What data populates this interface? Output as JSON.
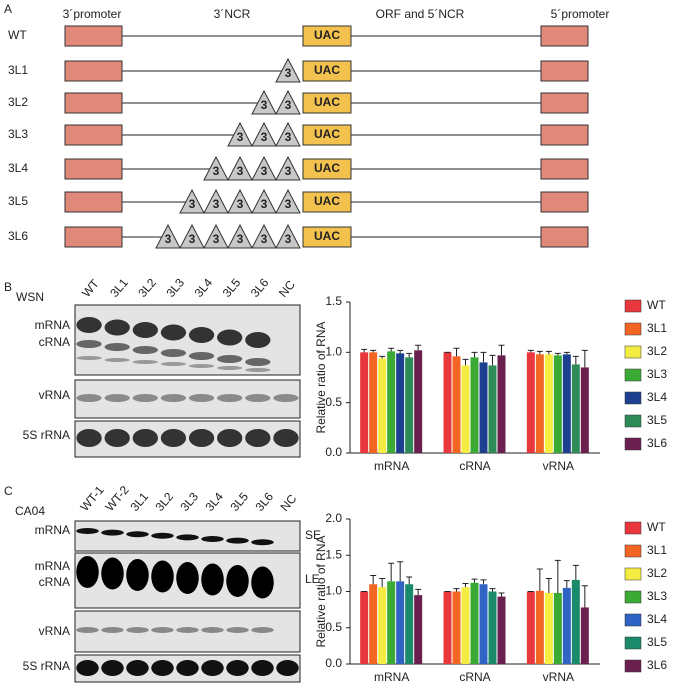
{
  "panels": {
    "a": "A",
    "b": "B",
    "c": "C"
  },
  "diagram": {
    "headers": [
      "3´promoter",
      "3´NCR",
      "ORF and 5´NCR",
      "5´promoter"
    ],
    "rows": [
      {
        "label": "WT",
        "repeats": 0
      },
      {
        "label": "3L1",
        "repeats": 1
      },
      {
        "label": "3L2",
        "repeats": 2
      },
      {
        "label": "3L3",
        "repeats": 3
      },
      {
        "label": "3L4",
        "repeats": 4
      },
      {
        "label": "3L5",
        "repeats": 5
      },
      {
        "label": "3L6",
        "repeats": 6
      }
    ],
    "repeat_label": "3",
    "start_codon": "UAC"
  },
  "blot_b": {
    "strain": "WSN",
    "lanes": [
      "WT",
      "3L1",
      "3L2",
      "3L3",
      "3L4",
      "3L5",
      "3L6",
      "NC"
    ],
    "rows": [
      "mRNA",
      "cRNA",
      "vRNA",
      "5S rRNA"
    ]
  },
  "blot_c": {
    "strain": "CA04",
    "lanes": [
      "WT-1",
      "WT-2",
      "3L1",
      "3L2",
      "3L3",
      "3L4",
      "3L5",
      "3L6",
      "NC"
    ],
    "rows": [
      "mRNA",
      "mRNA",
      "cRNA",
      "vRNA",
      "5S rRNA"
    ],
    "exposures": [
      "SE",
      "LE"
    ]
  },
  "chart_data": [
    {
      "type": "bar",
      "ylabel": "Relative ratio of RNA",
      "categories": [
        "mRNA",
        "cRNA",
        "vRNA"
      ],
      "ylim": [
        0,
        1.5
      ],
      "yticks": [
        {
          "value": 0,
          "label": "0.0"
        },
        {
          "value": 0.5,
          "label": "0.5"
        },
        {
          "value": 1,
          "label": "1.0"
        },
        {
          "value": 1.5,
          "label": "1.5"
        }
      ],
      "legend": "right",
      "series": [
        {
          "name": "WT",
          "color": "#e8383d",
          "values": [
            1.0,
            1.0,
            1.0
          ],
          "errors": [
            0.03,
            0.0,
            0.02
          ]
        },
        {
          "name": "3L1",
          "color": "#f26522",
          "values": [
            1.0,
            0.96,
            0.98
          ],
          "errors": [
            0.02,
            0.08,
            0.03
          ]
        },
        {
          "name": "3L2",
          "color": "#f5ec42",
          "values": [
            0.94,
            0.87,
            0.98
          ],
          "errors": [
            0.02,
            0.06,
            0.03
          ]
        },
        {
          "name": "3L3",
          "color": "#3aaa35",
          "values": [
            1.01,
            0.95,
            0.97
          ],
          "errors": [
            0.03,
            0.05,
            0.02
          ]
        },
        {
          "name": "3L4",
          "color": "#1d3f8f",
          "values": [
            0.99,
            0.9,
            0.98
          ],
          "errors": [
            0.03,
            0.1,
            0.02
          ]
        },
        {
          "name": "3L5",
          "color": "#2e8b57",
          "values": [
            0.95,
            0.87,
            0.88
          ],
          "errors": [
            0.04,
            0.1,
            0.08
          ]
        },
        {
          "name": "3L6",
          "color": "#6b1f4f",
          "values": [
            1.02,
            0.97,
            0.85
          ],
          "errors": [
            0.05,
            0.1,
            0.17
          ]
        }
      ]
    },
    {
      "type": "bar",
      "ylabel": "Relative ratio of RNA",
      "categories": [
        "mRNA",
        "cRNA",
        "vRNA"
      ],
      "ylim": [
        0,
        2
      ],
      "yticks": [
        {
          "value": 0,
          "label": "0.0"
        },
        {
          "value": 0.5,
          "label": "0.5"
        },
        {
          "value": 1,
          "label": "1.0"
        },
        {
          "value": 1.5,
          "label": "1.5"
        },
        {
          "value": 2,
          "label": "2.0"
        }
      ],
      "legend": "right",
      "series": [
        {
          "name": "WT",
          "color": "#e8383d",
          "values": [
            1.0,
            1.0,
            1.0
          ],
          "errors": [
            0,
            0,
            0
          ]
        },
        {
          "name": "3L1",
          "color": "#f26522",
          "values": [
            1.1,
            1.0,
            1.01
          ],
          "errors": [
            0.12,
            0.04,
            0.3
          ]
        },
        {
          "name": "3L2",
          "color": "#f5ec42",
          "values": [
            1.06,
            1.06,
            0.98
          ],
          "errors": [
            0.12,
            0.05,
            0.2
          ]
        },
        {
          "name": "3L3",
          "color": "#3aaa35",
          "values": [
            1.14,
            1.12,
            0.98
          ],
          "errors": [
            0.25,
            0.05,
            0.45
          ]
        },
        {
          "name": "3L4",
          "color": "#2f63c4",
          "values": [
            1.14,
            1.1,
            1.05
          ],
          "errors": [
            0.27,
            0.06,
            0.1
          ]
        },
        {
          "name": "3L5",
          "color": "#1a8a6a",
          "values": [
            1.1,
            1.0,
            1.16
          ],
          "errors": [
            0.1,
            0.04,
            0.2
          ]
        },
        {
          "name": "3L6",
          "color": "#6b1f4f",
          "values": [
            0.95,
            0.93,
            0.78
          ],
          "errors": [
            0.08,
            0.05,
            0.3
          ]
        }
      ]
    }
  ]
}
